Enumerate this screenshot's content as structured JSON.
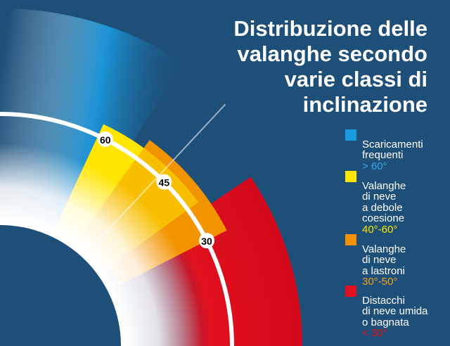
{
  "title": {
    "lines": [
      "Distribuzione delle",
      "valanghe secondo",
      "varie classi di",
      "inclinazione"
    ]
  },
  "angle_labels": [
    "60",
    "45",
    "30"
  ],
  "legend": [
    {
      "label": "Scaricamenti\nfrequenti",
      "range": "> 60°",
      "color": "#1a9be0"
    },
    {
      "label": "Valanghe\ndi neve\na debole\ncoesione",
      "range": "40°-60°",
      "color": "#ffe500"
    },
    {
      "label": "Valanghe\ndi neve\na lastroni",
      "range": "30°-50°",
      "color": "#f29400"
    },
    {
      "label": "Distacchi\ndi neve umida\no bagnata",
      "range": "< 30°",
      "color": "#e0101e"
    }
  ],
  "colors": {
    "background": "#1d4f78",
    "blue": "#1a9be0",
    "yellow": "#ffe500",
    "orange": "#f29400",
    "red": "#e0101e",
    "arc": "#ffffff"
  }
}
